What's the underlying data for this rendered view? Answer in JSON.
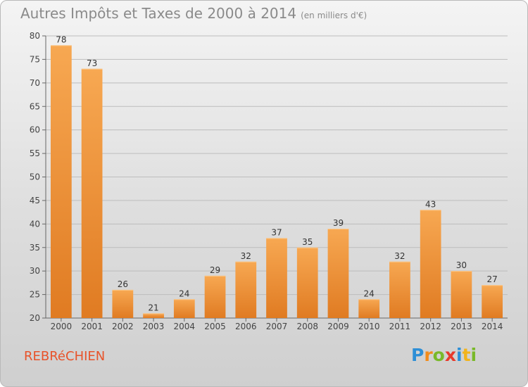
{
  "title": "Autres Impôts et Taxes de 2000 à 2014",
  "subtitle": "(en milliers d'€)",
  "commune": "REBRéCHIEN",
  "logo": {
    "letters": [
      {
        "ch": "P",
        "color": "#2e8fd6"
      },
      {
        "ch": "r",
        "color": "#f28c1c"
      },
      {
        "ch": "o",
        "color": "#79b929"
      },
      {
        "ch": "x",
        "color": "#e8392a"
      },
      {
        "ch": "i",
        "color": "#2e8fd6"
      },
      {
        "ch": "t",
        "color": "#f2b41c"
      },
      {
        "ch": "i",
        "color": "#79b929"
      }
    ]
  },
  "colors": {
    "bar_light": "#f7a852",
    "bar_dark": "#e07b22",
    "grid": "#bdbdbd",
    "axis": "#666666"
  },
  "chart_data": {
    "type": "bar",
    "categories": [
      "2000",
      "2001",
      "2002",
      "2003",
      "2004",
      "2005",
      "2006",
      "2007",
      "2008",
      "2009",
      "2010",
      "2011",
      "2012",
      "2013",
      "2014"
    ],
    "values": [
      78,
      73,
      26,
      21,
      24,
      29,
      32,
      37,
      35,
      39,
      24,
      32,
      43,
      30,
      27
    ],
    "ylim": [
      20,
      80
    ],
    "yticks": [
      20,
      25,
      30,
      35,
      40,
      45,
      50,
      55,
      60,
      65,
      70,
      75,
      80
    ],
    "grid": true,
    "xlabel": "",
    "ylabel": ""
  }
}
